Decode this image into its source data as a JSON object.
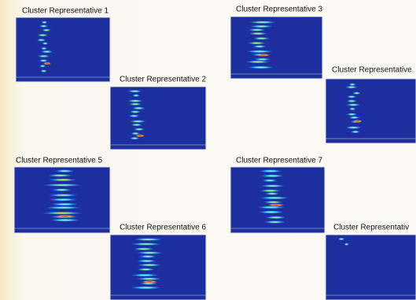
{
  "panels": [
    {
      "label": "Cluster Representative 1"
    },
    {
      "label": "Cluster Representative 2"
    },
    {
      "label": "Cluster Representative 3"
    },
    {
      "label": "Cluster Representative"
    },
    {
      "label": "Cluster Representative 5"
    },
    {
      "label": "Cluster Representative 6"
    },
    {
      "label": "Cluster Representative 7"
    },
    {
      "label": "Cluster Representativ"
    }
  ]
}
